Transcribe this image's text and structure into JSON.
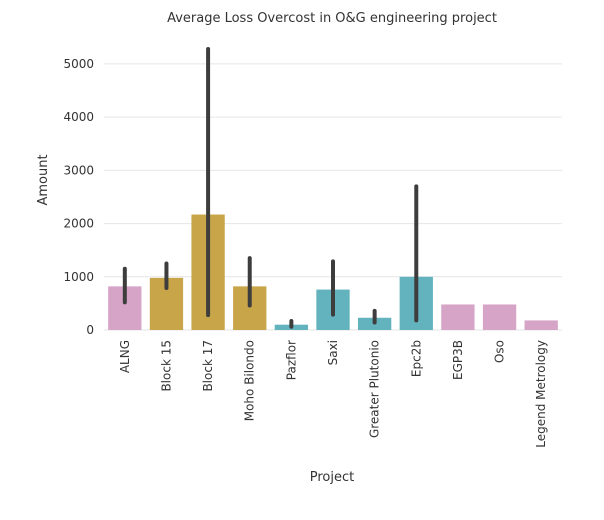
{
  "chart_data": {
    "type": "bar",
    "title": "Average Loss Overcost in O&G engineering project",
    "xlabel": "Project",
    "ylabel": "Amount",
    "ylim": [
      0,
      5600
    ],
    "yticks": [
      0,
      1000,
      2000,
      3000,
      4000,
      5000
    ],
    "grid": true,
    "categories": [
      "ALNG",
      "Block 15",
      "Block 17",
      "Moho Bilondo",
      "Pazflor",
      "Saxi",
      "Greater Plutonio",
      "Epc2b",
      "EGP3B",
      "Oso",
      "Legend Metrology"
    ],
    "values": [
      820,
      980,
      2170,
      820,
      100,
      760,
      230,
      1000,
      480,
      480,
      180
    ],
    "error_low": [
      520,
      790,
      280,
      460,
      60,
      290,
      140,
      180,
      480,
      480,
      180
    ],
    "error_high": [
      1150,
      1250,
      5280,
      1350,
      170,
      1290,
      360,
      2700,
      480,
      480,
      180
    ],
    "colors": [
      "#d6a4c6",
      "#c8a548",
      "#c8a548",
      "#c8a548",
      "#62b3bd",
      "#62b3bd",
      "#62b3bd",
      "#62b3bd",
      "#d6a4c6",
      "#d6a4c6",
      "#d6a4c6"
    ],
    "error_color": "#3d3d3d",
    "grid_color": "#e6e6e6"
  }
}
